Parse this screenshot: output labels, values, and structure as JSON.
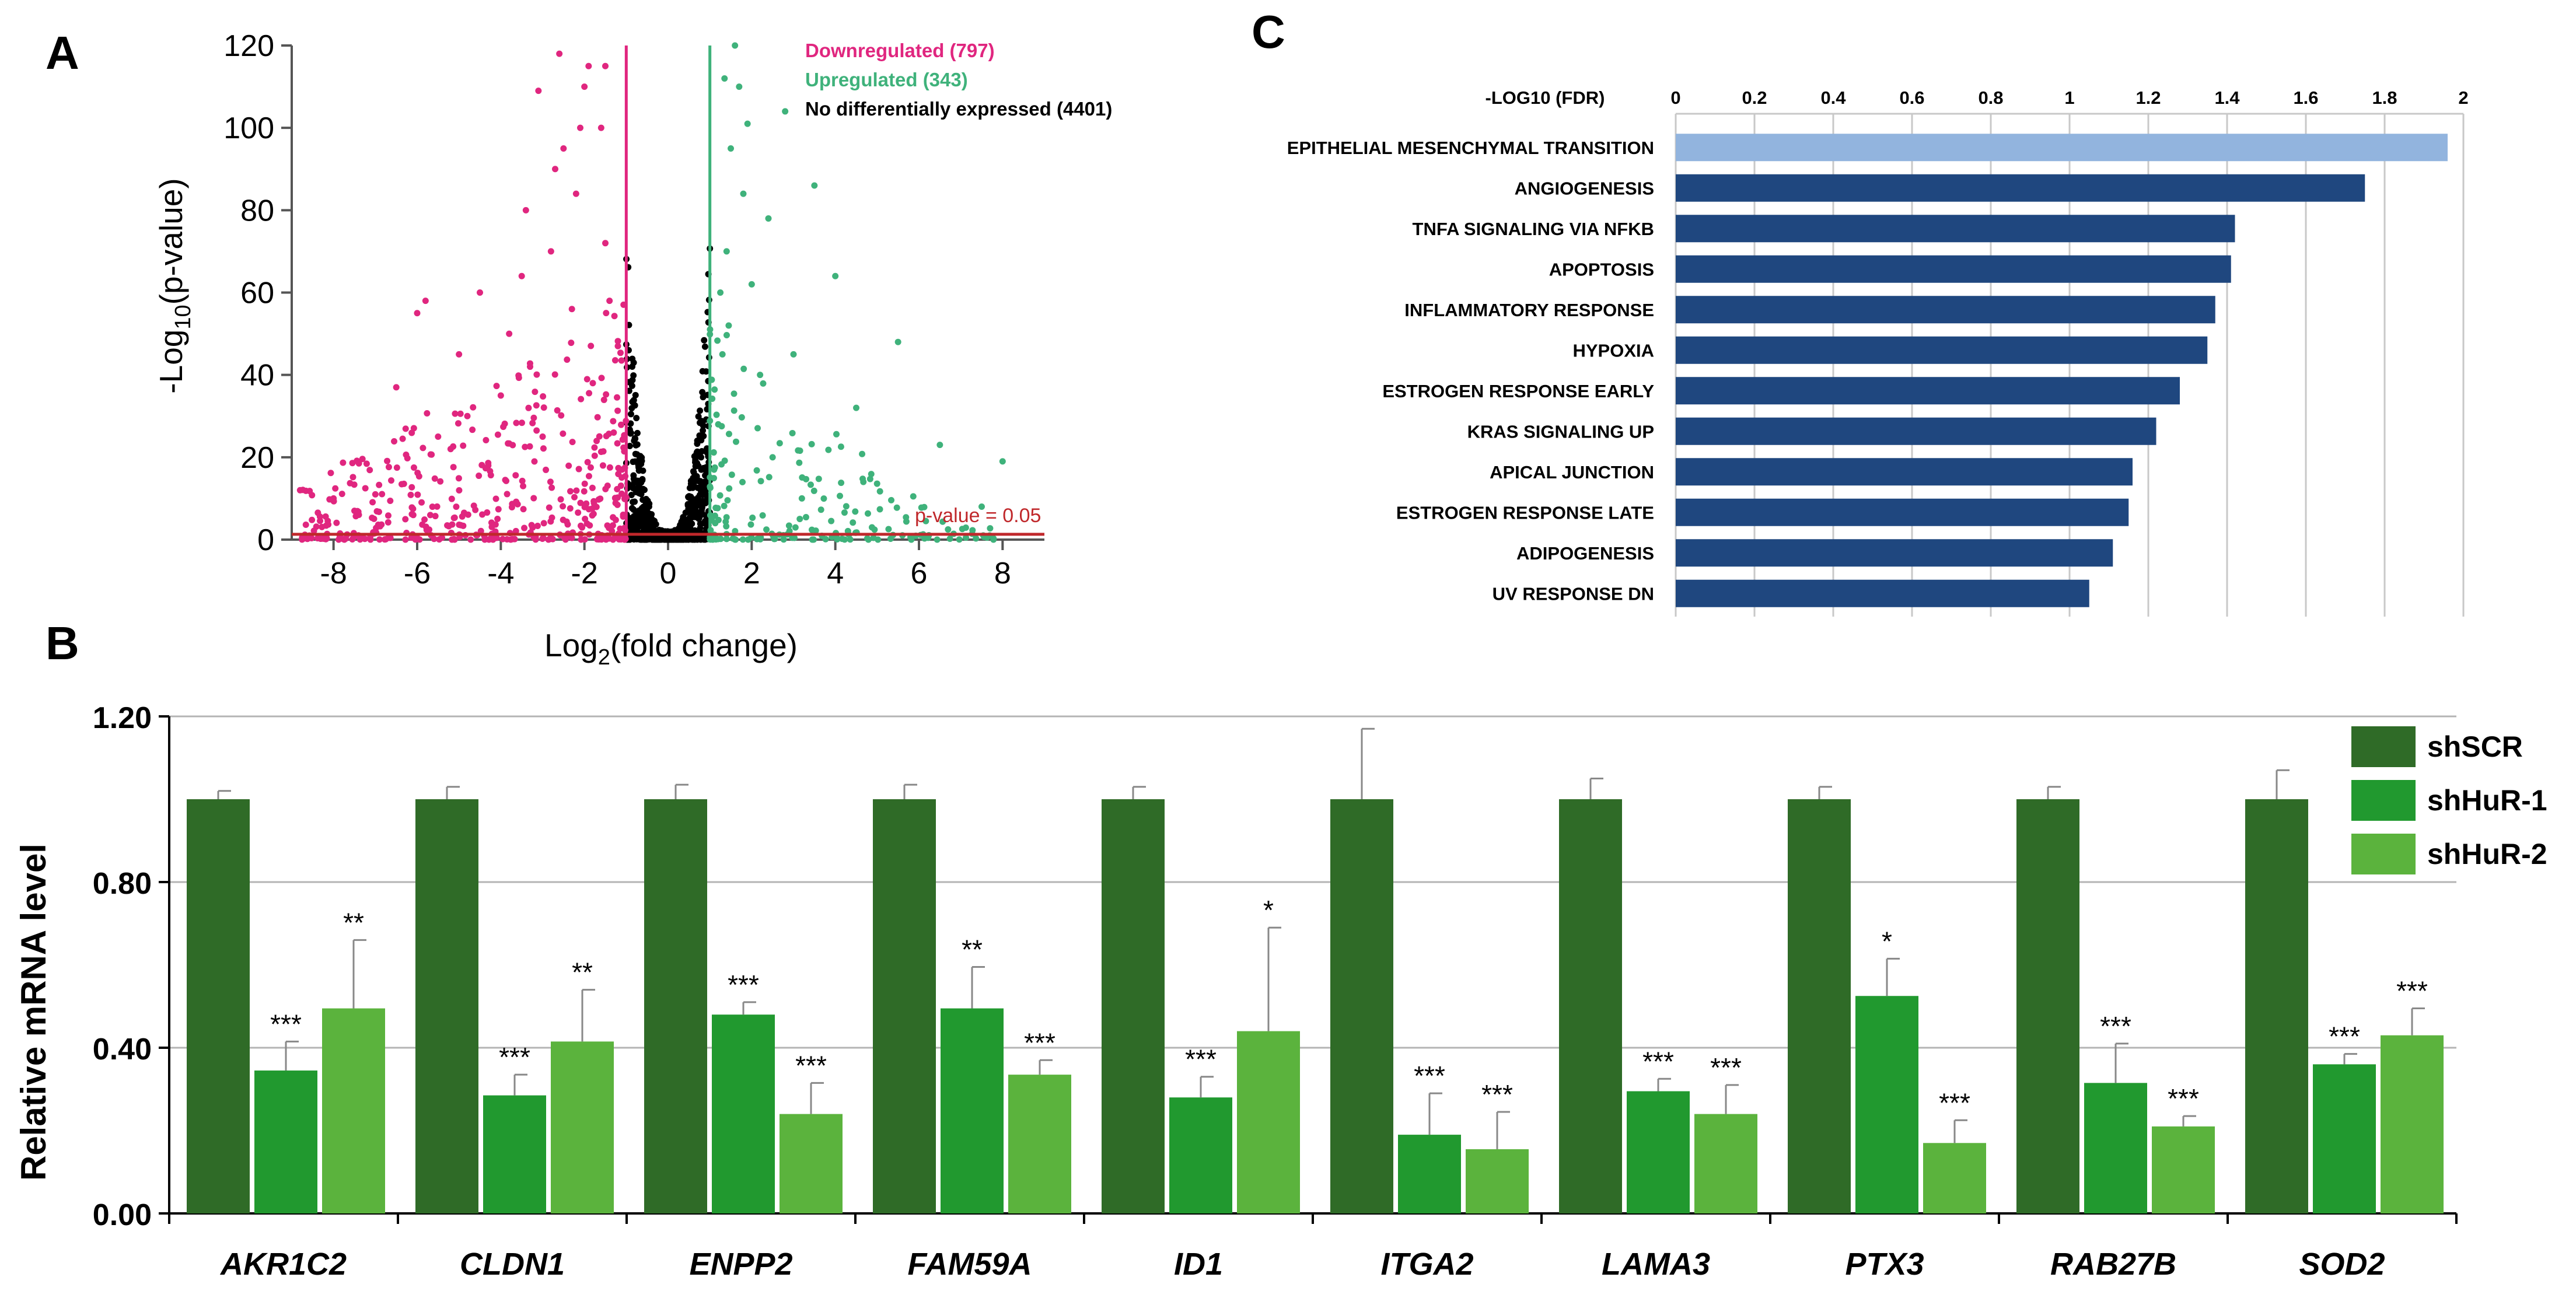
{
  "panel_labels": {
    "a": "A",
    "b": "B",
    "c": "C"
  },
  "colors": {
    "down": "#e0267f",
    "up": "#3fb27b",
    "none": "#000000",
    "threshold": "#c0282b",
    "hallmark_first": "#92b4de",
    "hallmark_rest": "#1f477f",
    "shSCR": "#2f6b27",
    "shHuR1": "#21992f",
    "shHuR2": "#5bb33d"
  },
  "chart_data": [
    {
      "id": "volcano",
      "type": "scatter",
      "title": "",
      "xlabel_main": "Log",
      "xlabel_sub": "2",
      "xlabel_tail": "(fold change)",
      "ylabel_main": "-Log",
      "ylabel_sub": "10",
      "ylabel_tail": "(p-value)",
      "xlim": [
        -9,
        9
      ],
      "ylim": [
        0,
        120
      ],
      "xticks": [
        "-8",
        "-6",
        "-4",
        "-2",
        "0",
        "2",
        "4",
        "6",
        "8"
      ],
      "yticks": [
        "0",
        "20",
        "40",
        "60",
        "80",
        "100",
        "120"
      ],
      "fold_change_cutoffs": [
        -1,
        1
      ],
      "pvalue_line_y": 1.3,
      "pvalue_label": "p-value = 0.05",
      "legend": [
        {
          "label": "Downregulated (797)",
          "color_key": "down"
        },
        {
          "label": "Upregulated (343)",
          "color_key": "up"
        },
        {
          "label": "No differentially expressed (4401)",
          "color_key": "none"
        }
      ],
      "series": [
        {
          "name": "Downregulated",
          "count": 797,
          "points": [
            [
              -8.8,
              12
            ],
            [
              -8,
              10
            ],
            [
              -7.5,
              7
            ],
            [
              -7,
              11
            ],
            [
              -6.5,
              37
            ],
            [
              -6,
              55
            ],
            [
              -5.8,
              58
            ],
            [
              -5.5,
              25
            ],
            [
              -5.2,
              22
            ],
            [
              -5,
              45
            ],
            [
              -4.8,
              30
            ],
            [
              -4.5,
              60
            ],
            [
              -4.3,
              18
            ],
            [
              -4,
              35
            ],
            [
              -3.8,
              50
            ],
            [
              -3.5,
              64
            ],
            [
              -3.4,
              80
            ],
            [
              -3.3,
              42
            ],
            [
              -3,
              25
            ],
            [
              -2.8,
              70
            ],
            [
              -2.7,
              90
            ],
            [
              -2.5,
              95
            ],
            [
              -2.3,
              56
            ],
            [
              -2.2,
              84
            ],
            [
              -2.1,
              100
            ],
            [
              -2,
              110
            ],
            [
              -1.9,
              115
            ],
            [
              -1.8,
              38
            ],
            [
              -1.6,
              100
            ],
            [
              -1.5,
              72
            ],
            [
              -1.4,
              58
            ],
            [
              -1.3,
              26
            ],
            [
              -1.2,
              47
            ],
            [
              -1.1,
              17
            ],
            [
              -1.5,
              115
            ],
            [
              -3.1,
              109
            ],
            [
              -2.6,
              118
            ]
          ]
        },
        {
          "name": "Upregulated",
          "count": 343,
          "points": [
            [
              1.1,
              17
            ],
            [
              1.2,
              28
            ],
            [
              1.3,
              45
            ],
            [
              1.4,
              70
            ],
            [
              1.5,
              95
            ],
            [
              1.6,
              120
            ],
            [
              1.7,
              110
            ],
            [
              1.8,
              84
            ],
            [
              2,
              62
            ],
            [
              2.2,
              40
            ],
            [
              2.5,
              20
            ],
            [
              2.8,
              104
            ],
            [
              3,
              45
            ],
            [
              3.2,
              10
            ],
            [
              3.5,
              86
            ],
            [
              4,
              64
            ],
            [
              4.5,
              32
            ],
            [
              5.5,
              48
            ],
            [
              6.5,
              23
            ],
            [
              7.5,
              8
            ],
            [
              8,
              19
            ],
            [
              1.35,
              112
            ],
            [
              1.9,
              101
            ],
            [
              2.4,
              78
            ],
            [
              1.25,
              60
            ],
            [
              1.45,
              52
            ]
          ]
        },
        {
          "name": "No differentially expressed",
          "count": 4401
        }
      ]
    },
    {
      "id": "hallmark",
      "type": "bar",
      "orientation": "horizontal",
      "axis_label": "-LOG10 (FDR)",
      "xlim": [
        0,
        2
      ],
      "xticks": [
        "0",
        "0.2",
        "0.4",
        "0.6",
        "0.8",
        "1",
        "1.2",
        "1.4",
        "1.6",
        "1.8",
        "2"
      ],
      "categories": [
        "EPITHELIAL MESENCHYMAL TRANSITION",
        "ANGIOGENESIS",
        "TNFA SIGNALING VIA NFKB",
        "APOPTOSIS",
        "INFLAMMATORY RESPONSE",
        "HYPOXIA",
        "ESTROGEN RESPONSE EARLY",
        "KRAS SIGNALING UP",
        "APICAL JUNCTION",
        "ESTROGEN RESPONSE LATE",
        "ADIPOGENESIS",
        "UV RESPONSE DN"
      ],
      "values": [
        1.96,
        1.75,
        1.42,
        1.41,
        1.37,
        1.35,
        1.28,
        1.22,
        1.16,
        1.15,
        1.11,
        1.05
      ]
    },
    {
      "id": "qpcr",
      "type": "bar",
      "ylabel": "Relative mRNA level",
      "ylim": [
        0,
        1.2
      ],
      "yticks": [
        "0.00",
        "0.40",
        "0.80",
        "1.20"
      ],
      "categories": [
        "AKR1C2",
        "CLDN1",
        "ENPP2",
        "FAM59A",
        "ID1",
        "ITGA2",
        "LAMA3",
        "PTX3",
        "RAB27B",
        "SOD2"
      ],
      "series": [
        {
          "name": "shSCR",
          "color_key": "shSCR",
          "values": [
            1.0,
            1.0,
            1.0,
            1.0,
            1.0,
            1.0,
            1.0,
            1.0,
            1.0,
            1.0
          ],
          "errors": [
            0.02,
            0.03,
            0.035,
            0.035,
            0.03,
            0.17,
            0.05,
            0.03,
            0.03,
            0.07
          ],
          "sig": [
            "",
            "",
            "",
            "",
            "",
            "",
            "",
            "",
            "",
            ""
          ]
        },
        {
          "name": "shHuR-1",
          "color_key": "shHuR1",
          "values": [
            0.345,
            0.285,
            0.48,
            0.495,
            0.28,
            0.19,
            0.295,
            0.525,
            0.315,
            0.36
          ],
          "errors": [
            0.07,
            0.05,
            0.03,
            0.1,
            0.05,
            0.1,
            0.03,
            0.09,
            0.095,
            0.025
          ],
          "sig": [
            "***",
            "***",
            "***",
            "**",
            "***",
            "***",
            "***",
            "*",
            "***",
            "***"
          ]
        },
        {
          "name": "shHuR-2",
          "color_key": "shHuR2",
          "values": [
            0.495,
            0.415,
            0.24,
            0.335,
            0.44,
            0.155,
            0.24,
            0.17,
            0.21,
            0.43
          ],
          "errors": [
            0.165,
            0.125,
            0.075,
            0.035,
            0.25,
            0.09,
            0.07,
            0.055,
            0.025,
            0.065
          ],
          "sig": [
            "**",
            "**",
            "***",
            "***",
            "*",
            "***",
            "***",
            "***",
            "***",
            "***"
          ]
        }
      ]
    }
  ]
}
